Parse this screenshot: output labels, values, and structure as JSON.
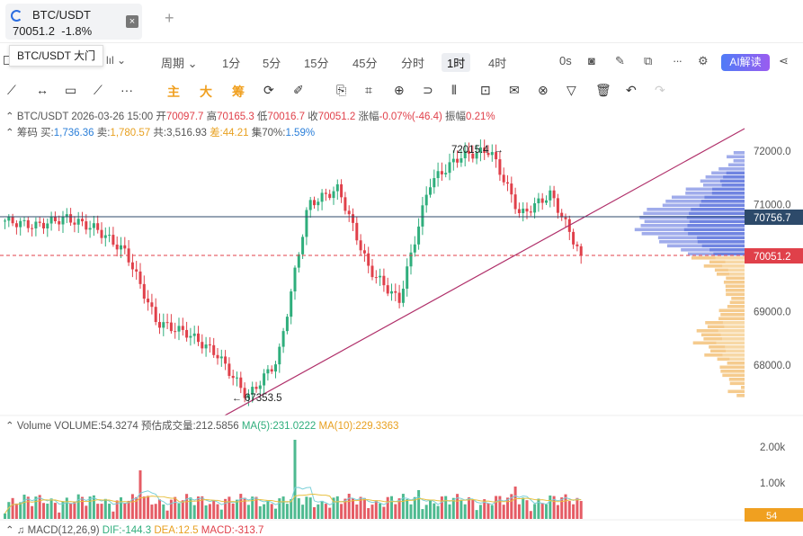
{
  "tab": {
    "title": "BTC/USDT",
    "price": "70051.2",
    "change": "-1.8%",
    "close": "×"
  },
  "new_tab": "+",
  "tooltip": "BTC/USDT 大门",
  "toolbar": {
    "period": "周期",
    "intervals": [
      "1分",
      "5分",
      "15分",
      "45分",
      "分时",
      "1时",
      "4时"
    ],
    "selected": "1时",
    "timer": "0s",
    "ai": "AI解读"
  },
  "tools": {
    "main": "主",
    "big": "大",
    "chip": "筹"
  },
  "ohlc": {
    "symbol": "BTC/USDT",
    "datetime": "2026-03-26 15:00",
    "open_label": "开",
    "open": "70097.7",
    "high_label": "高",
    "high": "70165.3",
    "low_label": "低",
    "low": "70016.7",
    "close_label": "收",
    "close": "70051.2",
    "chg_label": "涨幅",
    "chg": "-0.07%(-46.4)",
    "amp_label": "振幅",
    "amp": "0.21%"
  },
  "chips": {
    "label": "筹码",
    "buy_label": "买:",
    "buy": "1,736.36",
    "sell_label": "卖:",
    "sell": "1,780.57",
    "total_label": "共:",
    "total": "3,516.93",
    "diff_label": "差:",
    "diff": "44.21",
    "conc_label": "集70%:",
    "conc": "1.59%"
  },
  "chart_data": {
    "type": "candlestick",
    "symbol": "BTC/USDT",
    "interval": "1时",
    "price_axis": [
      "72000.0",
      "71000.0",
      "70000.0",
      "69000.0",
      "68000.0"
    ],
    "ylim": [
      67300,
      72200
    ],
    "annotations": {
      "high": "72015.4",
      "low": "67353.5"
    },
    "price_tags": {
      "reference": "70756.7",
      "last": "70051.2"
    },
    "volume": {
      "label": "Volume",
      "volume_label": "VOLUME:",
      "volume": "54.3274",
      "est_label": "预估成交量:",
      "est": "212.5856",
      "ma5_label": "MA(5):",
      "ma5": "231.0222",
      "ma10_label": "MA(10):",
      "ma10": "229.3363",
      "axis": [
        "2.00k",
        "1.00k"
      ],
      "tag": "54"
    },
    "macd": {
      "label": "MACD(12,26,9)",
      "dif_label": "DIF:",
      "dif": "-144.3",
      "dea_label": "DEA:",
      "dea": "12.5",
      "macd_label": "MACD:",
      "macd": "-313.7"
    },
    "colors": {
      "up": "#2fae7c",
      "down": "#e0404a",
      "trend": "#b0306a",
      "ref_line": "#2d4a6a"
    },
    "key_prices": [
      70700,
      70600,
      70750,
      70550,
      70100,
      68800,
      68600,
      68200,
      67400,
      68100,
      71000,
      71300,
      69800,
      69200,
      71400,
      71900,
      72015,
      70800,
      71200,
      70051
    ]
  }
}
